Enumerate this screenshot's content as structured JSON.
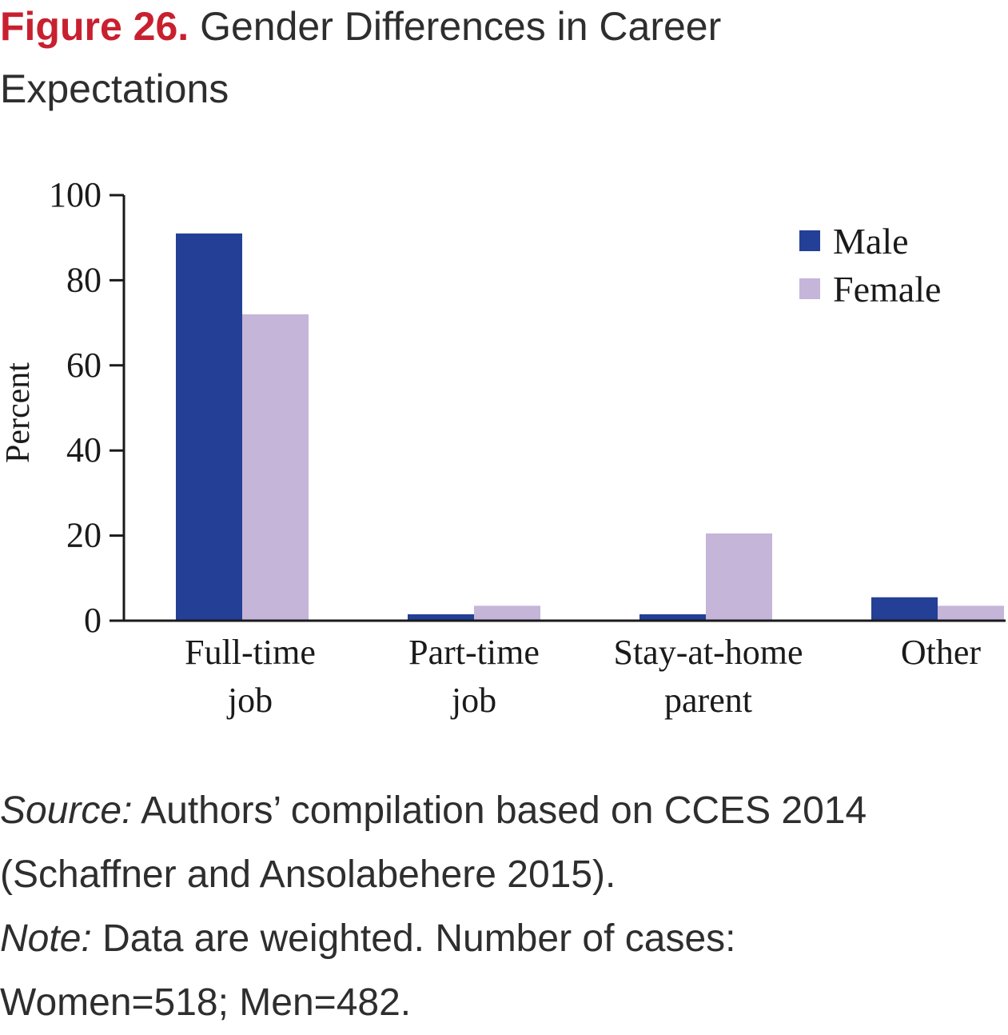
{
  "figure": {
    "label": "Figure 26.",
    "title": "Gender Differences in Career Expectations"
  },
  "colors": {
    "male": "#233f96",
    "female": "#c5b5d9",
    "figure_label": "#c8202f",
    "axis": "#1a1a1a"
  },
  "chart_data": {
    "type": "bar",
    "categories": [
      [
        "Full-time",
        "job"
      ],
      [
        "Part-time",
        "job"
      ],
      [
        "Stay-at-home",
        "parent"
      ],
      [
        "Other"
      ]
    ],
    "series": [
      {
        "name": "Male",
        "values": [
          91,
          1.5,
          1.5,
          5.5
        ]
      },
      {
        "name": "Female",
        "values": [
          72,
          3.5,
          20.5,
          3.5
        ]
      }
    ],
    "ylabel": "Percent",
    "xlabel": "",
    "ylim": [
      0,
      100
    ],
    "yticks": [
      0,
      20,
      40,
      60,
      80,
      100
    ],
    "legend_position": "top-right",
    "grid": false
  },
  "caption": {
    "source_label": "Source:",
    "source_text": "Authors’ compilation based on CCES 2014 (Schaffner and Ansolabehere 2015).",
    "note_label": "Note:",
    "note_text": "Data are weighted. Number of cases: Women=518; Men=482."
  }
}
